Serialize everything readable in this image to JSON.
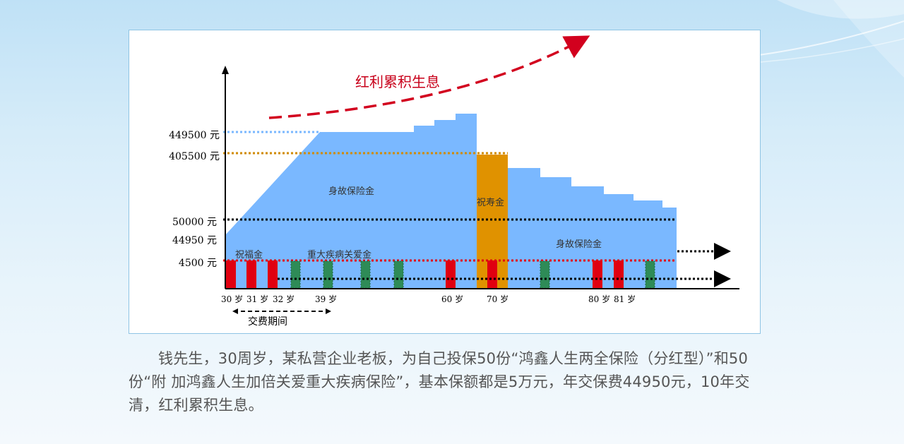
{
  "chart_data": {
    "type": "area",
    "title": "红利累积生息",
    "y_labels": [
      "449500 元",
      "405500 元",
      "50000 元",
      "44950 元",
      "4500 元"
    ],
    "x_labels": [
      "30 岁",
      "31 岁",
      "32 岁",
      "39 岁",
      "60 岁",
      "70 岁",
      "80 岁",
      "81 岁"
    ],
    "payment_period_label": "交费期间",
    "region_labels": {
      "death_benefit_1": "身故保险金",
      "survival_benefit": "祝寿金",
      "death_benefit_2": "身故保险金",
      "blessing_benefit": "祝福金",
      "critical_illness_benefit": "重大疾病关爱金"
    },
    "key_values": {
      "death_benefit_max": 449500,
      "survival_benefit": 405500,
      "basic_sum_insured": 50000,
      "annual_premium": 44950,
      "blessing_benefit": 4500
    },
    "colors": {
      "death_benefit_area": "#7ab8ff",
      "survival_benefit": "#e09200",
      "blessing_benefit_bar": "#e00010",
      "critical_illness_bar": "#2e8b57",
      "dividend_arrow": "#d2001e",
      "axis": "#000000"
    }
  },
  "caption": "钱先生，30周岁，某私营企业老板，为自己投保50份“鸿鑫人生两全保险（分红型）”和50份“附 加鸿鑫人生加倍关爱重大疾病保险”，基本保额都是5万元，年交保费44950元，10年交清，红利累积生息。"
}
